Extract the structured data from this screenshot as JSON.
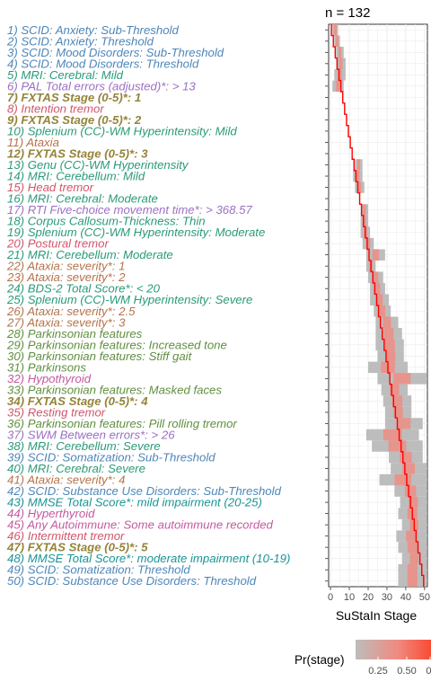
{
  "chart_data": {
    "type": "heatmap",
    "title": "n = 132",
    "xlabel": "SuStaIn Stage",
    "xlim": [
      0,
      51
    ],
    "x_ticks": [
      0,
      10,
      20,
      30,
      40,
      50
    ],
    "grid": true,
    "legend": {
      "title": "Pr(stage)",
      "placement": "bottom-right",
      "ticks": [
        "0.25",
        "0.50",
        "0."
      ],
      "colors": [
        "#bdbdbd",
        "#f8766d",
        "#f8482e"
      ]
    },
    "ml_line_color": "#ff0000",
    "group_colors": {
      "scid": "#4e86b8",
      "mri": "#2a9a79",
      "pal": "#9b6fc3",
      "fxtas": "#94843a",
      "tremor": "#d1556a",
      "ataxia": "#b4734a",
      "bds": "#2a9a79",
      "park": "#5f8f3f",
      "thyroid": "#c4599e",
      "mmse": "#1a9494"
    },
    "events": [
      {
        "label": "1) SCID: Anxiety: Sub-Threshold",
        "group": "scid",
        "bold": false,
        "start": 1,
        "end": 3
      },
      {
        "label": "2) SCID: Anxiety: Threshold",
        "group": "scid",
        "bold": false,
        "start": 2,
        "end": 4
      },
      {
        "label": "3) SCID: Mood Disorders: Sub-Threshold",
        "group": "scid",
        "bold": false,
        "start": 3,
        "end": 6
      },
      {
        "label": "4) SCID: Mood Disorders: Threshold",
        "group": "scid",
        "bold": false,
        "start": 3,
        "end": 7
      },
      {
        "label": "5) MRI: Cerebral: Mild",
        "group": "mri",
        "bold": false,
        "start": 2,
        "end": 7
      },
      {
        "label": "6) PAL Total errors (adjusted)*: > 13",
        "group": "pal",
        "bold": false,
        "start": 1,
        "end": 6
      },
      {
        "label": "7) FXTAS Stage (0-5)*: 1",
        "group": "fxtas",
        "bold": true,
        "start": null,
        "end": null
      },
      {
        "label": "8) Intention tremor",
        "group": "tremor",
        "bold": false,
        "start": null,
        "end": null
      },
      {
        "label": "9) FXTAS Stage (0-5)*: 2",
        "group": "fxtas",
        "bold": true,
        "start": null,
        "end": null
      },
      {
        "label": "10) Splenium (CC)-WM Hyperintensity: Mild",
        "group": "mri",
        "bold": false,
        "start": null,
        "end": null
      },
      {
        "label": "11) Ataxia",
        "group": "ataxia",
        "bold": false,
        "start": null,
        "end": null
      },
      {
        "label": "12) FXTAS Stage (0-5)*: 3",
        "group": "fxtas",
        "bold": true,
        "start": null,
        "end": null
      },
      {
        "label": "13) Genu (CC)-WM Hyperintensity",
        "group": "mri",
        "bold": false,
        "start": 13,
        "end": 16
      },
      {
        "label": "14) MRI: Cerebellum: Mild",
        "group": "mri",
        "bold": false,
        "start": 12,
        "end": 16
      },
      {
        "label": "15) Head tremor",
        "group": "tremor",
        "bold": false,
        "start": 13,
        "end": 17
      },
      {
        "label": "16) MRI: Cerebral: Moderate",
        "group": "mri",
        "bold": false,
        "start": null,
        "end": null
      },
      {
        "label": "17) RTI Five-choice movement time*: > 368.57",
        "group": "pal",
        "bold": false,
        "start": 16,
        "end": 19
      },
      {
        "label": "18) Corpus Callosum-Thickness: Thin",
        "group": "mri",
        "bold": false,
        "start": 16,
        "end": 19
      },
      {
        "label": "19) Splenium (CC)-WM Hyperintensity: Moderate",
        "group": "mri",
        "bold": false,
        "start": 16,
        "end": 20
      },
      {
        "label": "20) Postural tremor",
        "group": "tremor",
        "bold": false,
        "start": 17,
        "end": 22
      },
      {
        "label": "21) MRI: Cerebellum: Moderate",
        "group": "mri",
        "bold": false,
        "start": 19,
        "end": 28
      },
      {
        "label": "22) Ataxia: severity*: 1",
        "group": "ataxia",
        "bold": false,
        "start": 19,
        "end": 23
      },
      {
        "label": "23) Ataxia: severity*: 2",
        "group": "ataxia",
        "bold": false,
        "start": 20,
        "end": 27
      },
      {
        "label": "24) BDS-2 Total Score*: < 20",
        "group": "bds",
        "bold": false,
        "start": 21,
        "end": 28
      },
      {
        "label": "25) Splenium (CC)-WM Hyperintensity: Severe",
        "group": "mri",
        "bold": false,
        "start": 21,
        "end": 30
      },
      {
        "label": "26) Ataxia: severity*: 2.5",
        "group": "ataxia",
        "bold": false,
        "start": 23,
        "end": 31
      },
      {
        "label": "27) Ataxia: severity*: 3",
        "group": "ataxia",
        "bold": false,
        "start": 24,
        "end": 35
      },
      {
        "label": "28) Parkinsonian features",
        "group": "park",
        "bold": false,
        "start": 24,
        "end": 37
      },
      {
        "label": "29) Parkinsonian features: Increased tone",
        "group": "park",
        "bold": false,
        "start": 24,
        "end": 38
      },
      {
        "label": "30) Parkinsonian features: Stiff gait",
        "group": "park",
        "bold": false,
        "start": 25,
        "end": 38
      },
      {
        "label": "31) Parkinsons",
        "group": "park",
        "bold": false,
        "start": 20,
        "end": 40
      },
      {
        "label": "32) Hypothyroid",
        "group": "thyroid",
        "bold": false,
        "start": 25,
        "end": 50
      },
      {
        "label": "33) Parkinsonian features: Masked faces",
        "group": "park",
        "bold": false,
        "start": 27,
        "end": 40
      },
      {
        "label": "34) FXTAS Stage (0-5)*: 4",
        "group": "fxtas",
        "bold": true,
        "start": 28,
        "end": 42
      },
      {
        "label": "35) Resting tremor",
        "group": "tremor",
        "bold": false,
        "start": 29,
        "end": 42
      },
      {
        "label": "36) Parkinsonian features: Pill rolling tremor",
        "group": "park",
        "bold": false,
        "start": 29,
        "end": 48
      },
      {
        "label": "37) SWM Between errors*: > 26",
        "group": "pal",
        "bold": false,
        "start": 19,
        "end": 46
      },
      {
        "label": "38) MRI: Cerebellum: Severe",
        "group": "mri",
        "bold": false,
        "start": 22,
        "end": 48
      },
      {
        "label": "39) SCID: Somatization: Sub-Threshold",
        "group": "scid",
        "bold": false,
        "start": 31,
        "end": 48
      },
      {
        "label": "40) MRI: Cerebral: Severe",
        "group": "mri",
        "bold": false,
        "start": 32,
        "end": 50
      },
      {
        "label": "41) Ataxia: severity*: 4",
        "group": "ataxia",
        "bold": false,
        "start": 26,
        "end": 50
      },
      {
        "label": "42) SCID: Substance Use Disorders: Sub-Threshold",
        "group": "scid",
        "bold": false,
        "start": 34,
        "end": 50
      },
      {
        "label": "43) MMSE Total Score*: mild impairment (20-25)",
        "group": "mmse",
        "bold": false,
        "start": 37,
        "end": 50
      },
      {
        "label": "44) Hyperthyroid",
        "group": "thyroid",
        "bold": false,
        "start": 36,
        "end": 50
      },
      {
        "label": "45) Any Autoimmune: Some autoimmune recorded",
        "group": "thyroid",
        "bold": false,
        "start": 38,
        "end": 50
      },
      {
        "label": "46) Intermittent tremor",
        "group": "tremor",
        "bold": false,
        "start": 35,
        "end": 50
      },
      {
        "label": "47) FXTAS Stage (0-5)*: 5",
        "group": "fxtas",
        "bold": true,
        "start": 36,
        "end": 50
      },
      {
        "label": "48) MMSE Total Score*: moderate impairment (10-19)",
        "group": "mmse",
        "bold": false,
        "start": 38,
        "end": 50
      },
      {
        "label": "49) SCID: Somatization: Threshold",
        "group": "scid",
        "bold": false,
        "start": 36,
        "end": 50
      },
      {
        "label": "50) SCID: Substance Use Disorders: Threshold",
        "group": "scid",
        "bold": false,
        "start": 36,
        "end": 50
      }
    ]
  }
}
